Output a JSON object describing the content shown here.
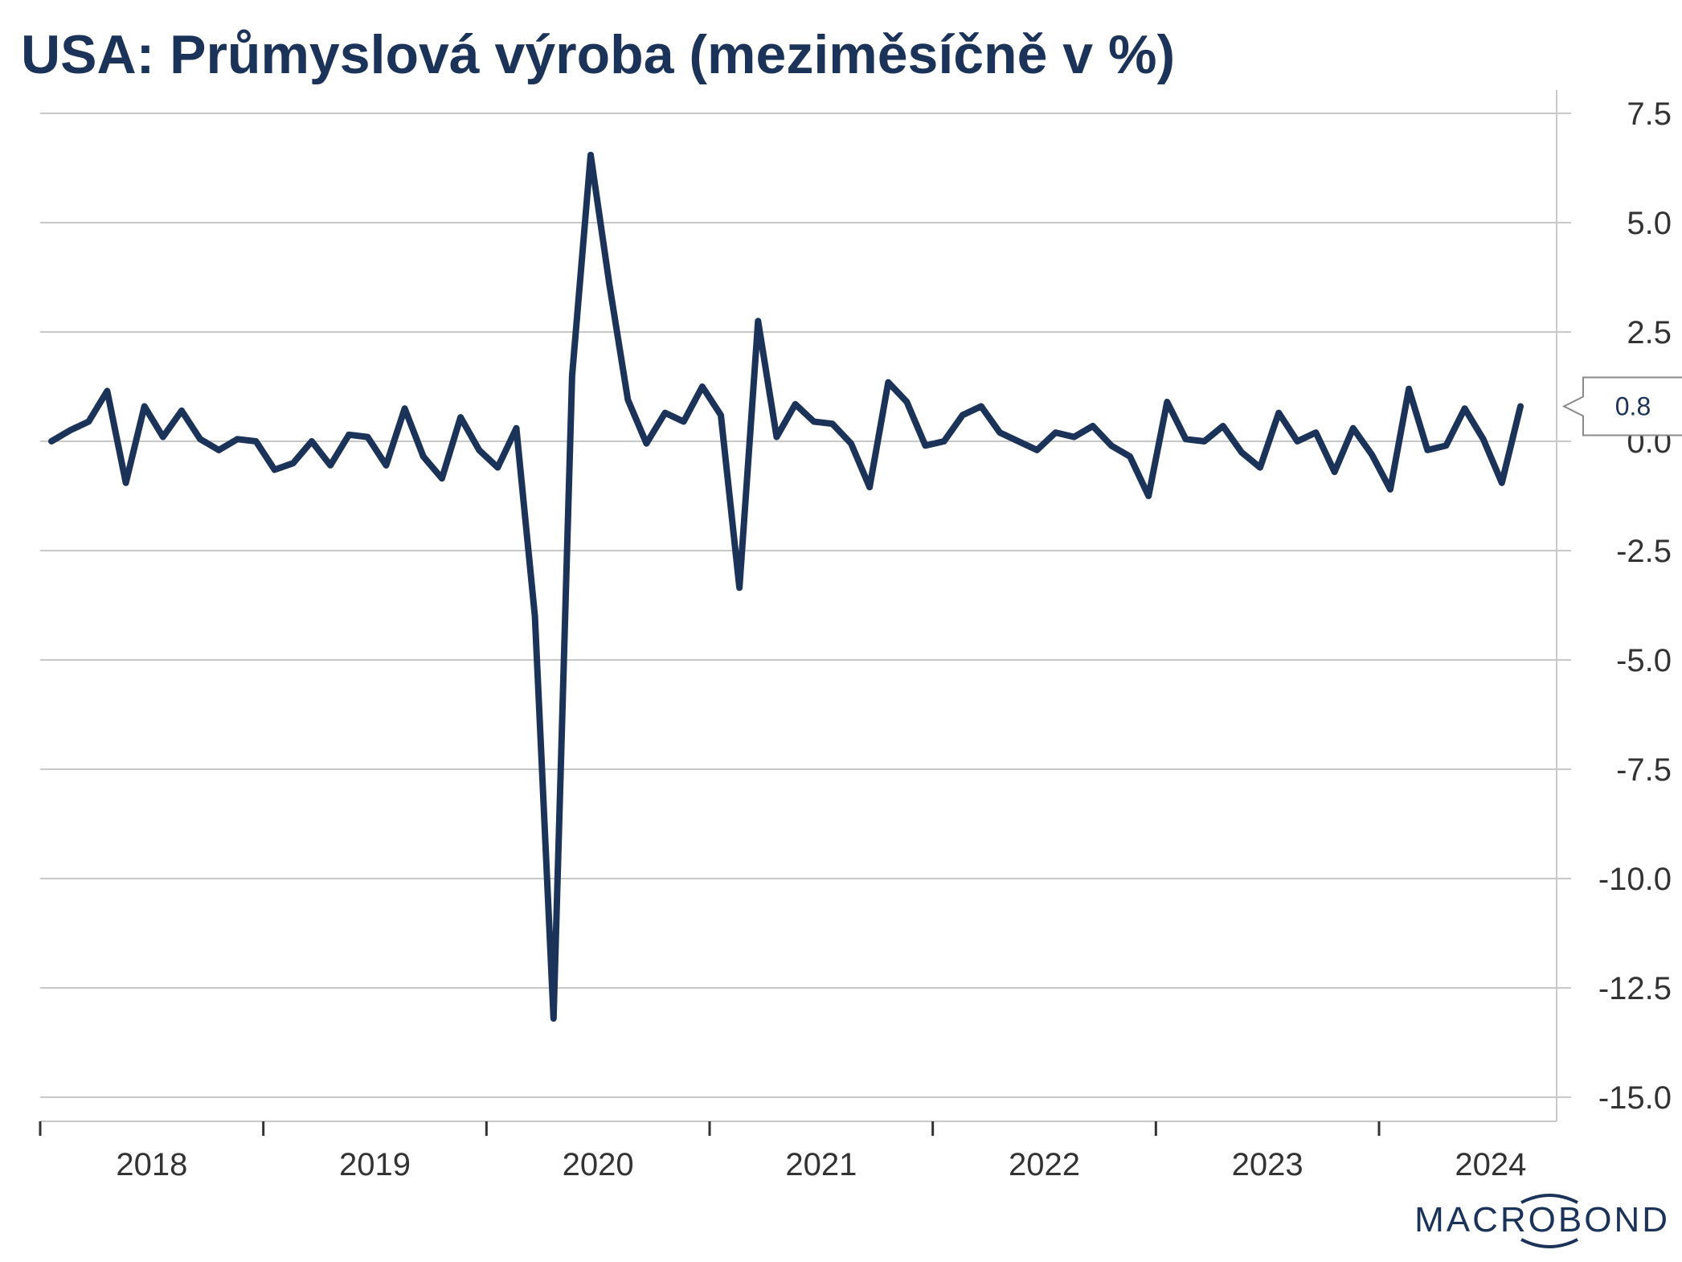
{
  "chart_data": {
    "type": "line",
    "title": "USA: Průmyslová výroba (meziměsíčně v %)",
    "xlabel": "",
    "ylabel": "",
    "ylim": [
      -15.5,
      8.0
    ],
    "y_ticks": [
      7.5,
      5.0,
      2.5,
      0.0,
      -2.5,
      -5.0,
      -7.5,
      -10.0,
      -12.5,
      -15.0
    ],
    "y_tick_labels": [
      "7.5",
      "5.0",
      "2.5",
      "0.0",
      "-2.5",
      "-5.0",
      "-7.5",
      "-10.0",
      "-12.5",
      "-15.0"
    ],
    "x_tick_labels": [
      "2018",
      "2019",
      "2020",
      "2021",
      "2022",
      "2023",
      "2024"
    ],
    "grid": true,
    "y_axis_position": "right",
    "last_value_label": "0.8",
    "series": [
      {
        "name": "",
        "color": "#1b3358",
        "start": "2018-01",
        "frequency": "monthly",
        "values": [
          0.0,
          0.25,
          0.45,
          1.15,
          -0.95,
          0.8,
          0.1,
          0.7,
          0.05,
          -0.2,
          0.05,
          0.0,
          -0.65,
          -0.5,
          0.0,
          -0.55,
          0.15,
          0.1,
          -0.55,
          0.75,
          -0.35,
          -0.85,
          0.55,
          -0.2,
          -0.6,
          0.3,
          -4.0,
          -13.2,
          1.5,
          6.55,
          3.6,
          0.95,
          -0.05,
          0.65,
          0.45,
          1.25,
          0.6,
          -3.35,
          2.75,
          0.1,
          0.85,
          0.45,
          0.4,
          -0.05,
          -1.05,
          1.35,
          0.9,
          -0.1,
          0.0,
          0.6,
          0.8,
          0.2,
          0.0,
          -0.2,
          0.2,
          0.1,
          0.35,
          -0.1,
          -0.35,
          -1.25,
          0.9,
          0.05,
          0.0,
          0.35,
          -0.25,
          -0.6,
          0.65,
          0.0,
          0.2,
          -0.7,
          0.3,
          -0.3,
          -1.1,
          1.2,
          -0.2,
          -0.1,
          0.75,
          0.05,
          -0.95,
          0.8
        ]
      }
    ]
  },
  "branding": {
    "logo_text": "MACROBOND",
    "logo_color": "#1b3358"
  }
}
